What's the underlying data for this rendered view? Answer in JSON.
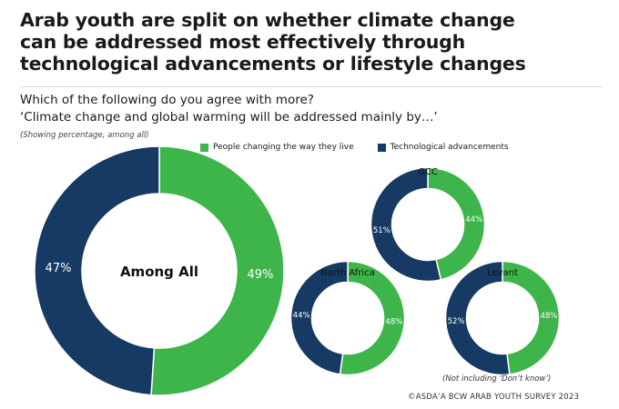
{
  "title": "Arab youth are split on whether climate change\ncan be addressed most effectively through\ntechnological advancements or lifestyle changes",
  "question": "Which of the following do you agree with more?",
  "statement": "‘Climate change and global warming will be addressed mainly by…’",
  "subtitle": "(Showing percentage, among all)",
  "note": "(Not including ‘Don’t know’)",
  "source": "©ASDA’A BCW ARAB YOUTH SURVEY 2023",
  "colors": {
    "lifestyle": "#3db54a",
    "technology": "#163a63"
  },
  "chart_data": {
    "type": "pie",
    "legend": [
      {
        "name": "People changing the way they live",
        "color": "#3db54a"
      },
      {
        "name": "Technological advancements",
        "color": "#163a63"
      }
    ],
    "series": [
      "People changing the way they live",
      "Technological advancements"
    ],
    "charts": [
      {
        "label": "Among All",
        "values": [
          49,
          47
        ],
        "labels": [
          "49%",
          "47%"
        ]
      },
      {
        "label": "GCC",
        "values": [
          44,
          51
        ],
        "labels": [
          "44%",
          "51%"
        ]
      },
      {
        "label": "North Africa",
        "values": [
          48,
          44
        ],
        "labels": [
          "48%",
          "44%"
        ]
      },
      {
        "label": "Levant",
        "values": [
          48,
          52
        ],
        "labels": [
          "48%",
          "52%"
        ]
      }
    ]
  }
}
